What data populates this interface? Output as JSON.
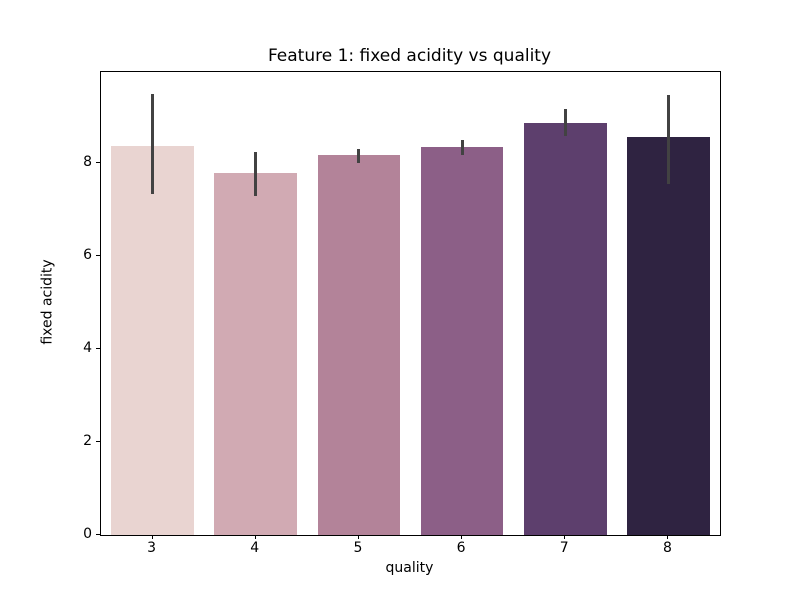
{
  "chart_data": {
    "type": "bar",
    "title": "Feature 1: fixed acidity vs quality",
    "xlabel": "quality",
    "ylabel": "fixed acidity",
    "categories": [
      "3",
      "4",
      "5",
      "6",
      "7",
      "8"
    ],
    "values": [
      8.36,
      7.78,
      8.17,
      8.35,
      8.87,
      8.57
    ],
    "error_low": [
      7.33,
      7.3,
      8.01,
      8.17,
      8.58,
      7.56
    ],
    "error_high": [
      9.49,
      8.24,
      8.31,
      8.5,
      9.17,
      9.46
    ],
    "bar_colors": [
      "#e9d4d1",
      "#d1aab3",
      "#b38399",
      "#8c5f87",
      "#5d3f6d",
      "#2f2341"
    ],
    "error_color": "#424242",
    "axis_color": "#000000",
    "background_color": "#ffffff",
    "yticks": [
      0,
      2,
      4,
      6,
      8
    ],
    "ylim": [
      0,
      9.96
    ],
    "grid": false,
    "legend": false
  }
}
